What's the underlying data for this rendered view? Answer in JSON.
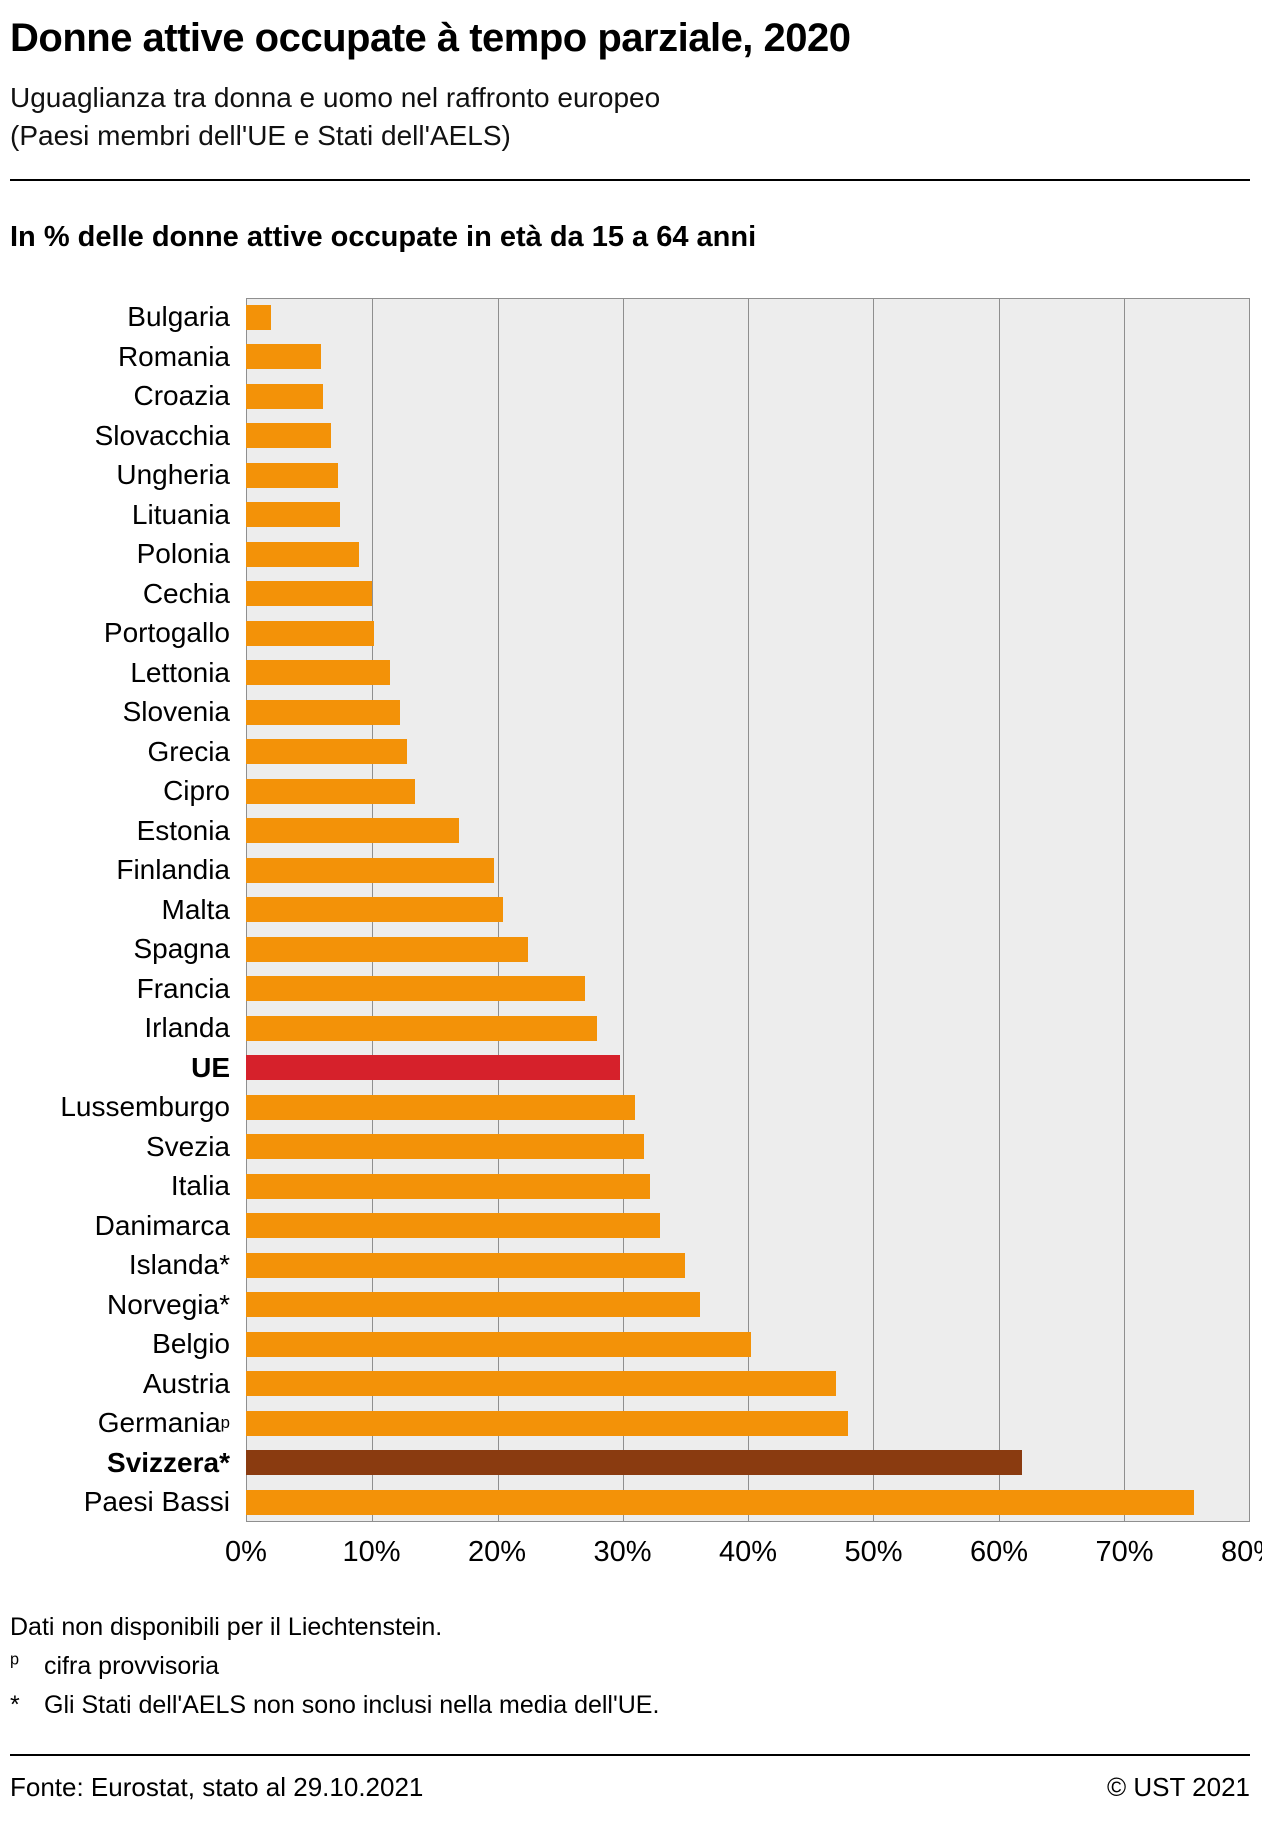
{
  "header": {
    "title": "Donne attive occupate à tempo parziale, 2020",
    "subtitle_line1": "Uguaglianza tra donna e uomo nel raffronto europeo",
    "subtitle_line2": "(Paesi membri dell'UE e Stati dell'AELS)"
  },
  "chart_data": {
    "type": "bar",
    "orientation": "horizontal",
    "title": "In % delle donne attive occupate in età da 15 a 64 anni",
    "xlabel": "",
    "ylabel": "",
    "xlim": [
      0,
      80
    ],
    "grid": true,
    "legend": "none",
    "plot_background": "#EDEDED",
    "bar_color_default": "#F39208",
    "x_ticks": [
      0,
      10,
      20,
      30,
      40,
      50,
      60,
      70,
      80
    ],
    "x_tick_labels": [
      "0%",
      "10%",
      "20%",
      "30%",
      "40%",
      "50%",
      "60%",
      "70%",
      "80%"
    ],
    "items": [
      {
        "label": "Bulgaria",
        "value": 2
      },
      {
        "label": "Romania",
        "value": 6
      },
      {
        "label": "Croazia",
        "value": 6.1
      },
      {
        "label": "Slovacchia",
        "value": 6.8
      },
      {
        "label": "Ungheria",
        "value": 7.3
      },
      {
        "label": "Lituania",
        "value": 7.5
      },
      {
        "label": "Polonia",
        "value": 9
      },
      {
        "label": "Cechia",
        "value": 10
      },
      {
        "label": "Portogallo",
        "value": 10.2
      },
      {
        "label": "Lettonia",
        "value": 11.5
      },
      {
        "label": "Slovenia",
        "value": 12.3
      },
      {
        "label": "Grecia",
        "value": 12.8
      },
      {
        "label": "Cipro",
        "value": 13.5
      },
      {
        "label": "Estonia",
        "value": 17
      },
      {
        "label": "Finlandia",
        "value": 19.8
      },
      {
        "label": "Malta",
        "value": 20.5
      },
      {
        "label": "Spagna",
        "value": 22.5
      },
      {
        "label": "Francia",
        "value": 27
      },
      {
        "label": "Irlanda",
        "value": 28
      },
      {
        "label": "UE",
        "value": 29.8,
        "color": "#D6212B",
        "bold": true
      },
      {
        "label": "Lussemburgo",
        "value": 31
      },
      {
        "label": "Svezia",
        "value": 31.7
      },
      {
        "label": "Italia",
        "value": 32.2
      },
      {
        "label": "Danimarca",
        "value": 33
      },
      {
        "label": "Islanda*",
        "value": 35
      },
      {
        "label": "Norvegia*",
        "value": 36.2
      },
      {
        "label": "Belgio",
        "value": 40.2
      },
      {
        "label": "Austria",
        "value": 47
      },
      {
        "label": "Germania",
        "sup": "p",
        "value": 48
      },
      {
        "label": "Svizzera*",
        "value": 61.8,
        "color": "#8A3B10",
        "bold": true
      },
      {
        "label": "Paesi Bassi",
        "value": 75.5
      }
    ]
  },
  "footnotes": {
    "line1": "Dati non disponibili per il Liechtenstein.",
    "line2_marker": "p",
    "line2_text": "cifra provvisoria",
    "line3_marker": "*",
    "line3_text": "Gli Stati dell'AELS non sono inclusi nella media dell'UE."
  },
  "footer": {
    "source": "Fonte: Eurostat, stato al 29.10.2021",
    "copyright": "© UST 2021"
  }
}
